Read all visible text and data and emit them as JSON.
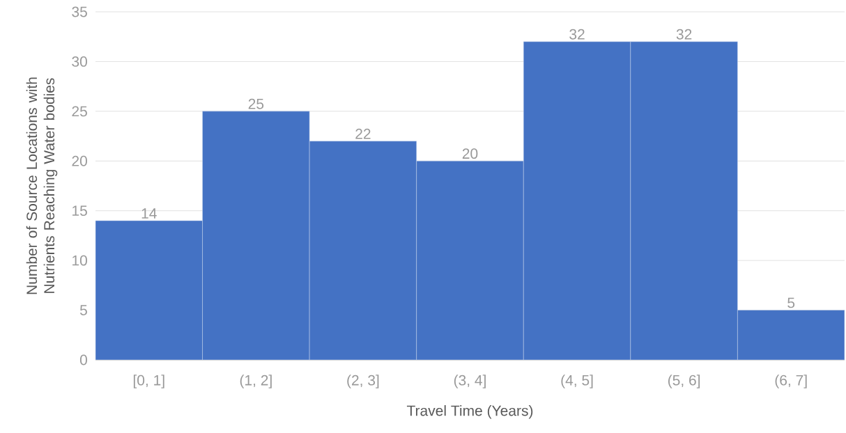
{
  "chart_data": {
    "type": "bar",
    "xlabel": "Travel Time (Years)",
    "ylabel": "Number of Source Locations with Nutrients Reaching Water bodies",
    "categories": [
      "[0, 1]",
      "(1, 2]",
      "(2, 3]",
      "(3, 4]",
      "(4, 5]",
      "(5, 6]",
      "(6, 7]"
    ],
    "values": [
      14,
      25,
      22,
      20,
      32,
      32,
      5
    ],
    "color": "#4472c4",
    "ylim": [
      0,
      35
    ],
    "yticks": [
      0,
      5,
      10,
      15,
      20,
      25,
      30,
      35
    ],
    "grid": "y",
    "data_labels": true
  }
}
